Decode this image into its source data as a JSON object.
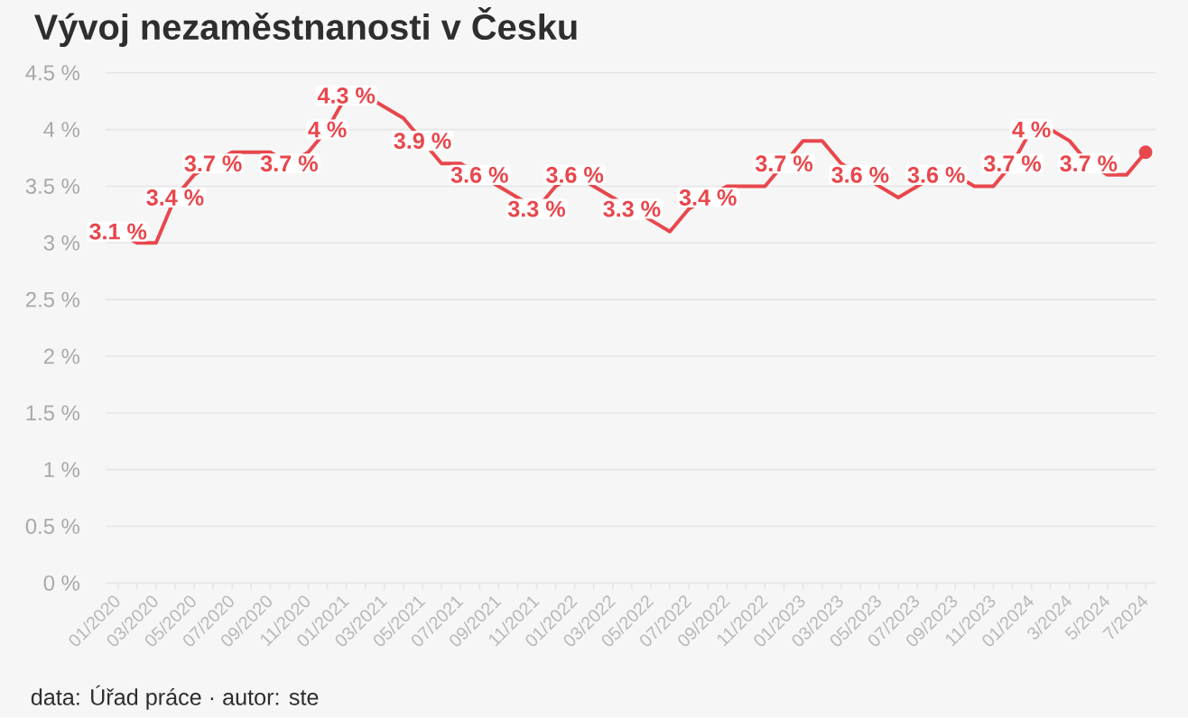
{
  "chart_data": {
    "type": "line",
    "title": "Vývoj nezaměstnanosti v Česku",
    "annotations": [
      "data: Úřad práce · autor: ste"
    ],
    "categories": [
      "01/2020",
      null,
      "03/2020",
      null,
      "05/2020",
      null,
      "07/2020",
      null,
      "09/2020",
      null,
      "11/2020",
      null,
      "01/2021",
      null,
      "03/2021",
      null,
      "05/2021",
      null,
      "07/2021",
      null,
      "09/2021",
      null,
      "11/2021",
      null,
      "01/2022",
      null,
      "03/2022",
      null,
      "05/2022",
      null,
      "07/2022",
      null,
      "09/2022",
      null,
      "11/2022",
      null,
      "01/2023",
      null,
      "03/2023",
      null,
      "05/2023",
      null,
      "07/2023",
      null,
      "09/2023",
      null,
      "11/2023",
      null,
      "01/2024",
      null,
      "3/2024",
      null,
      "5/2024",
      null,
      "7/2024"
    ],
    "series": [
      {
        "color": "#e8474c",
        "marker": "none",
        "values": [
          3.1,
          3.0,
          3.0,
          3.4,
          3.6,
          3.7,
          3.8,
          3.8,
          3.8,
          3.7,
          3.8,
          4.0,
          4.3,
          4.3,
          4.2,
          4.1,
          3.9,
          3.7,
          3.7,
          3.6,
          3.5,
          3.4,
          3.3,
          3.5,
          3.6,
          3.5,
          3.4,
          3.3,
          3.2,
          3.1,
          3.3,
          3.4,
          3.5,
          3.5,
          3.5,
          3.7,
          3.9,
          3.9,
          3.7,
          3.6,
          3.5,
          3.4,
          3.5,
          3.6,
          3.6,
          3.5,
          3.5,
          3.7,
          4.0,
          4.0,
          3.9,
          3.7,
          3.6,
          3.6,
          3.8
        ],
        "value_labels": [
          "3.1 %",
          null,
          null,
          "3.4 %",
          null,
          "3.7 %",
          null,
          null,
          null,
          "3.7 %",
          null,
          "4 %",
          "4.3 %",
          null,
          null,
          null,
          "3.9 %",
          null,
          null,
          "3.6 %",
          null,
          null,
          "3.3 %",
          null,
          "3.6 %",
          null,
          null,
          "3.3 %",
          null,
          null,
          null,
          "3.4 %",
          null,
          null,
          null,
          "3.7 %",
          null,
          null,
          null,
          "3.6 %",
          null,
          null,
          null,
          "3.6 %",
          null,
          null,
          null,
          "3.7 %",
          "4 %",
          null,
          null,
          "3.7 %",
          null,
          null,
          null
        ]
      },
      {
        "type": "scatter",
        "color": "#e8474c",
        "marker": "circle",
        "x": [
          "7/2024"
        ],
        "values": [
          3.8
        ]
      }
    ],
    "ylim": [
      0,
      4.5
    ],
    "yticks": [
      {
        "value": 0,
        "label": "0 %"
      },
      {
        "value": 0.5,
        "label": "0.5 %"
      },
      {
        "value": 1,
        "label": "1 %"
      },
      {
        "value": 1.5,
        "label": "1.5 %"
      },
      {
        "value": 2,
        "label": "2 %"
      },
      {
        "value": 2.5,
        "label": "2.5 %"
      },
      {
        "value": 3,
        "label": "3 %"
      },
      {
        "value": 3.5,
        "label": "3.5 %"
      },
      {
        "value": 4,
        "label": "4 %"
      },
      {
        "value": 4.5,
        "label": "4.5 %"
      }
    ],
    "grid": "y"
  }
}
